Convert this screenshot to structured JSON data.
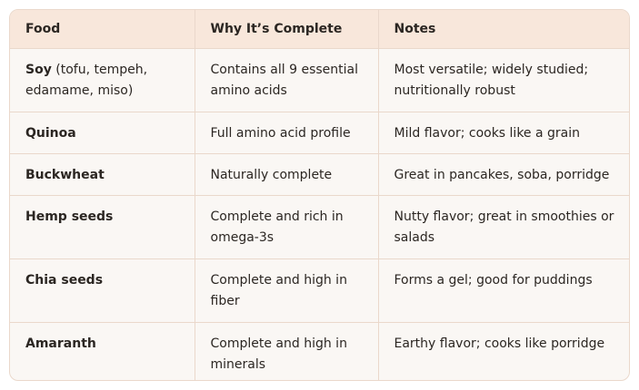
{
  "table": {
    "header": [
      "Food",
      "Why It’s Complete",
      "Notes"
    ],
    "rows": [
      {
        "food": "Soy",
        "food_note": "(tofu, tempeh, edamame, miso)",
        "why": "Contains all 9 essential amino acids",
        "notes": "Most versatile; widely studied; nutritionally robust"
      },
      {
        "food": "Quinoa",
        "why": "Full amino acid profile",
        "notes": "Mild flavor; cooks like a grain"
      },
      {
        "food": "Buckwheat",
        "why": "Naturally complete",
        "notes": "Great in pancakes, soba, porridge"
      },
      {
        "food": "Hemp seeds",
        "why": "Complete and rich in omega-3s",
        "notes": "Nutty flavor; great in smoothies or salads"
      },
      {
        "food": "Chia seeds",
        "why": "Complete and high in fiber",
        "notes": "Forms a gel; good for puddings"
      },
      {
        "food": "Amaranth",
        "why": "Complete and high in minerals",
        "notes": "Earthy flavor; cooks like porridge"
      }
    ]
  }
}
